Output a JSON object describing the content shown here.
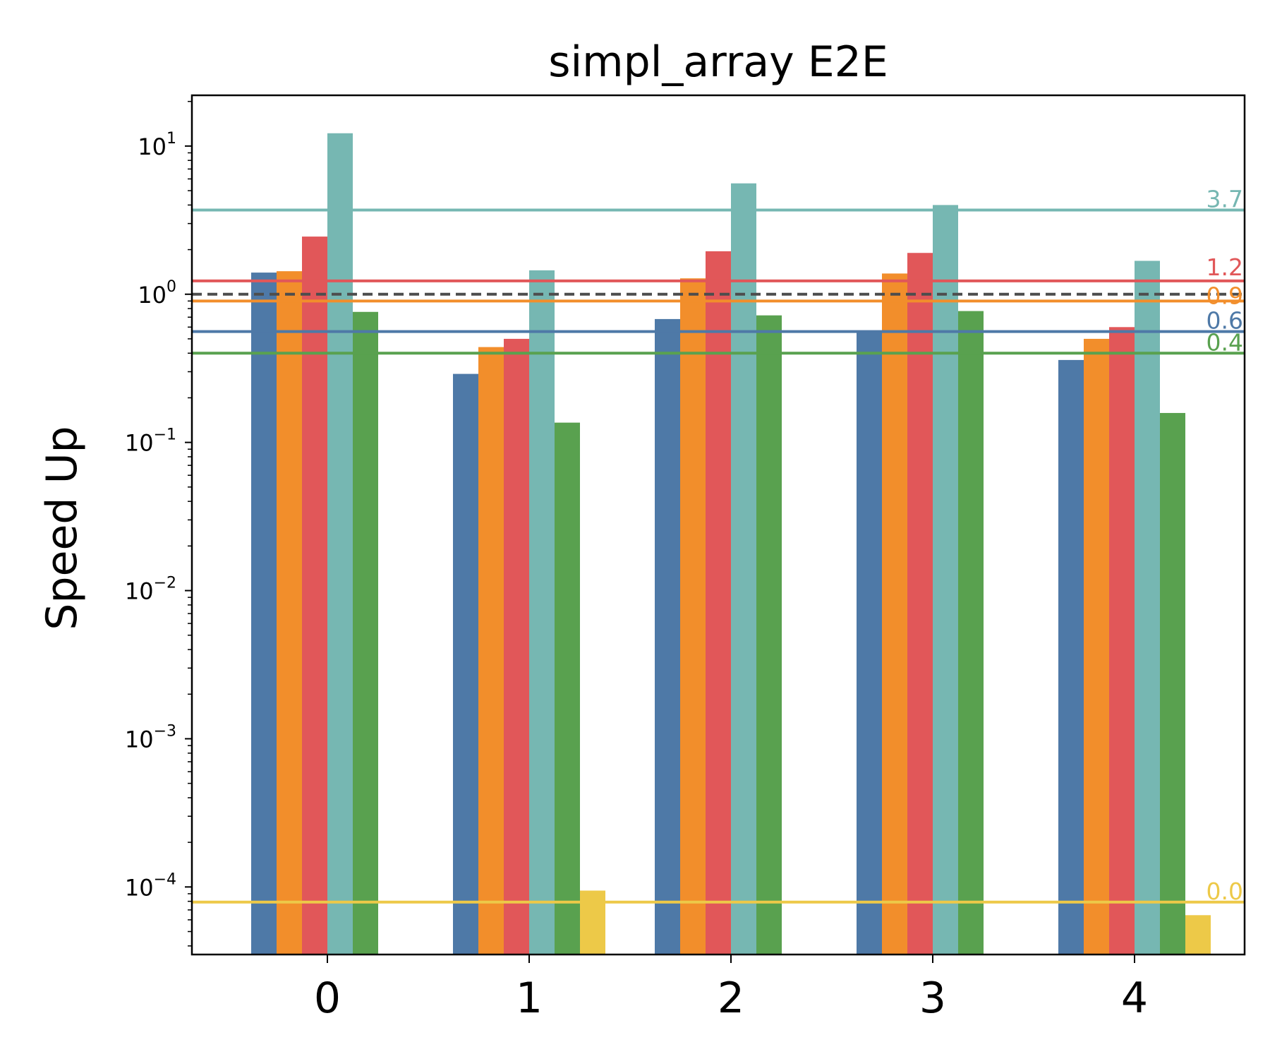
{
  "chart_data": {
    "type": "bar",
    "title": "simpl_array E2E",
    "xlabel": "",
    "ylabel": "Speed Up",
    "yscale": "log",
    "ylim": [
      3.5e-05,
      22
    ],
    "categories": [
      "0",
      "1",
      "2",
      "3",
      "4"
    ],
    "y_ticks": [
      {
        "value": 10,
        "base": "10",
        "exp": "1"
      },
      {
        "value": 1,
        "base": "10",
        "exp": "0"
      },
      {
        "value": 0.1,
        "base": "10",
        "exp": "−1"
      },
      {
        "value": 0.01,
        "base": "10",
        "exp": "−2"
      },
      {
        "value": 0.001,
        "base": "10",
        "exp": "−3"
      },
      {
        "value": 0.0001,
        "base": "10",
        "exp": "−4"
      }
    ],
    "series": [
      {
        "color": "#4e79a7",
        "values": [
          1.4,
          0.29,
          0.68,
          0.57,
          0.36
        ],
        "mean": 0.56,
        "mean_label": "0.6"
      },
      {
        "color": "#f28e2b",
        "values": [
          1.43,
          0.44,
          1.28,
          1.38,
          0.5
        ],
        "mean": 0.9,
        "mean_label": "0.9"
      },
      {
        "color": "#e15759",
        "values": [
          2.45,
          0.5,
          1.95,
          1.9,
          0.6
        ],
        "mean": 1.23,
        "mean_label": "1.2"
      },
      {
        "color": "#76b7b2",
        "values": [
          12.2,
          1.45,
          5.6,
          4.0,
          1.68
        ],
        "mean": 3.7,
        "mean_label": "3.7"
      },
      {
        "color": "#59a14f",
        "values": [
          0.76,
          0.136,
          0.72,
          0.77,
          0.158
        ],
        "mean": 0.4,
        "mean_label": "0.4"
      },
      {
        "color": "#edc948",
        "values": [
          null,
          9.45e-05,
          null,
          null,
          6.45e-05
        ],
        "mean": 7.9e-05,
        "mean_label": "0.0"
      }
    ],
    "baseline": {
      "value": 1.0,
      "style": "dashed",
      "color": "#4d4d4d"
    },
    "legend": "none",
    "grid": false
  }
}
